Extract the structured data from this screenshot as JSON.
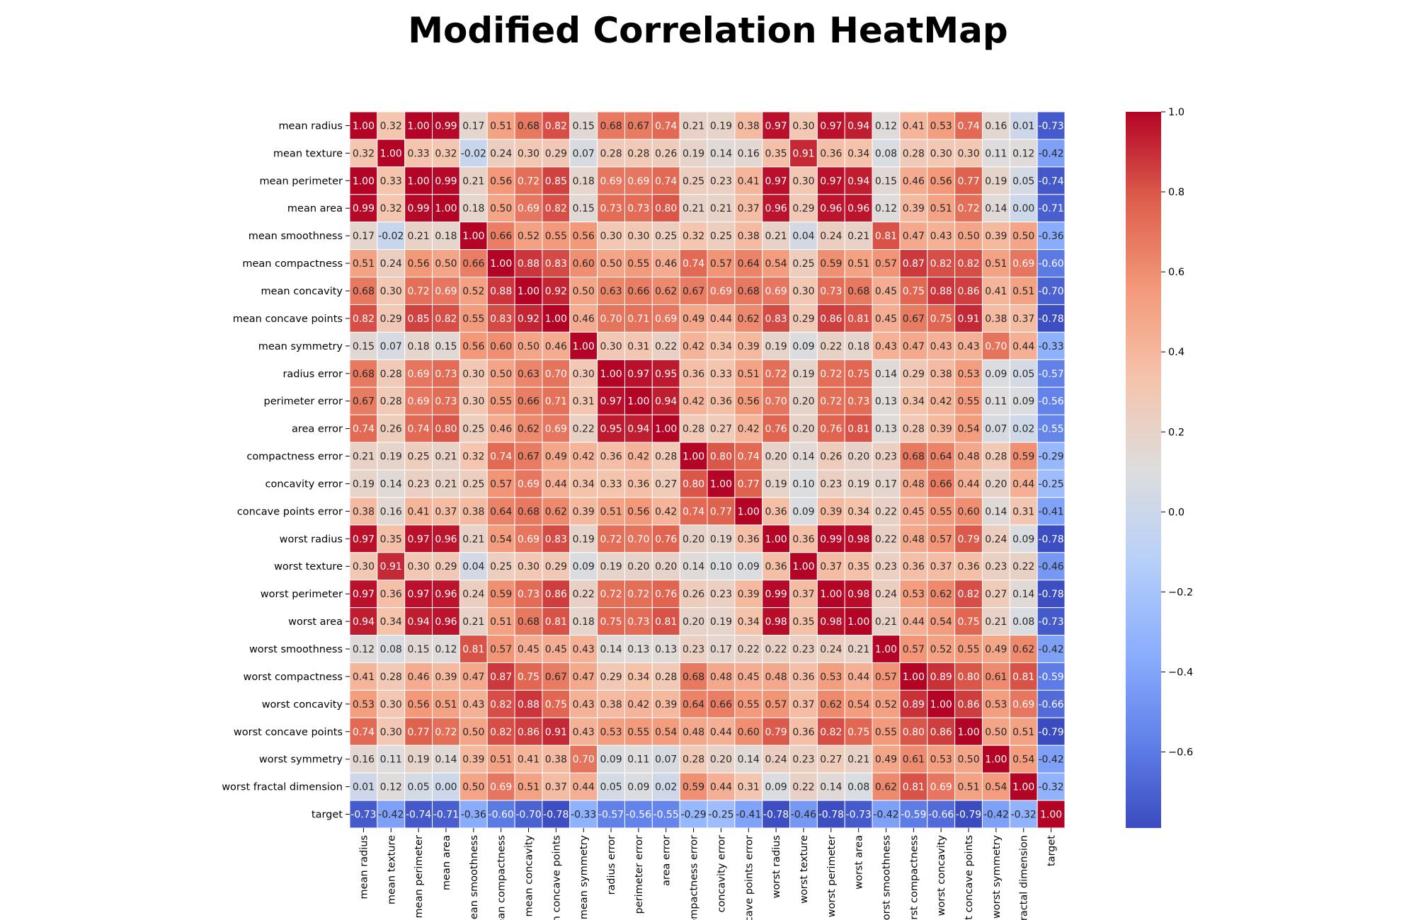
{
  "chart_data": {
    "type": "heatmap",
    "title": "Modified Correlation HeatMap",
    "colormap": "coolwarm",
    "vmin": -0.79,
    "vmax": 1.0,
    "labels": [
      "mean radius",
      "mean texture",
      "mean perimeter",
      "mean area",
      "mean smoothness",
      "mean compactness",
      "mean concavity",
      "mean concave points",
      "mean symmetry",
      "radius error",
      "perimeter error",
      "area error",
      "compactness error",
      "concavity error",
      "concave points error",
      "worst radius",
      "worst texture",
      "worst perimeter",
      "worst area",
      "worst smoothness",
      "worst compactness",
      "worst concavity",
      "worst concave points",
      "worst symmetry",
      "worst fractal dimension",
      "target"
    ],
    "matrix": [
      [
        1.0,
        0.32,
        1.0,
        0.99,
        0.17,
        0.51,
        0.68,
        0.82,
        0.15,
        0.68,
        0.67,
        0.74,
        0.21,
        0.19,
        0.38,
        0.97,
        0.3,
        0.97,
        0.94,
        0.12,
        0.41,
        0.53,
        0.74,
        0.16,
        0.01,
        -0.73
      ],
      [
        0.32,
        1.0,
        0.33,
        0.32,
        -0.02,
        0.24,
        0.3,
        0.29,
        0.07,
        0.28,
        0.28,
        0.26,
        0.19,
        0.14,
        0.16,
        0.35,
        0.91,
        0.36,
        0.34,
        0.08,
        0.28,
        0.3,
        0.3,
        0.11,
        0.12,
        -0.42
      ],
      [
        1.0,
        0.33,
        1.0,
        0.99,
        0.21,
        0.56,
        0.72,
        0.85,
        0.18,
        0.69,
        0.69,
        0.74,
        0.25,
        0.23,
        0.41,
        0.97,
        0.3,
        0.97,
        0.94,
        0.15,
        0.46,
        0.56,
        0.77,
        0.19,
        0.05,
        -0.74
      ],
      [
        0.99,
        0.32,
        0.99,
        1.0,
        0.18,
        0.5,
        0.69,
        0.82,
        0.15,
        0.73,
        0.73,
        0.8,
        0.21,
        0.21,
        0.37,
        0.96,
        0.29,
        0.96,
        0.96,
        0.12,
        0.39,
        0.51,
        0.72,
        0.14,
        0.0,
        -0.71
      ],
      [
        0.17,
        -0.02,
        0.21,
        0.18,
        1.0,
        0.66,
        0.52,
        0.55,
        0.56,
        0.3,
        0.3,
        0.25,
        0.32,
        0.25,
        0.38,
        0.21,
        0.04,
        0.24,
        0.21,
        0.81,
        0.47,
        0.43,
        0.5,
        0.39,
        0.5,
        -0.36
      ],
      [
        0.51,
        0.24,
        0.56,
        0.5,
        0.66,
        1.0,
        0.88,
        0.83,
        0.6,
        0.5,
        0.55,
        0.46,
        0.74,
        0.57,
        0.64,
        0.54,
        0.25,
        0.59,
        0.51,
        0.57,
        0.87,
        0.82,
        0.82,
        0.51,
        0.69,
        -0.6
      ],
      [
        0.68,
        0.3,
        0.72,
        0.69,
        0.52,
        0.88,
        1.0,
        0.92,
        0.5,
        0.63,
        0.66,
        0.62,
        0.67,
        0.69,
        0.68,
        0.69,
        0.3,
        0.73,
        0.68,
        0.45,
        0.75,
        0.88,
        0.86,
        0.41,
        0.51,
        -0.7
      ],
      [
        0.82,
        0.29,
        0.85,
        0.82,
        0.55,
        0.83,
        0.92,
        1.0,
        0.46,
        0.7,
        0.71,
        0.69,
        0.49,
        0.44,
        0.62,
        0.83,
        0.29,
        0.86,
        0.81,
        0.45,
        0.67,
        0.75,
        0.91,
        0.38,
        0.37,
        -0.78
      ],
      [
        0.15,
        0.07,
        0.18,
        0.15,
        0.56,
        0.6,
        0.5,
        0.46,
        1.0,
        0.3,
        0.31,
        0.22,
        0.42,
        0.34,
        0.39,
        0.19,
        0.09,
        0.22,
        0.18,
        0.43,
        0.47,
        0.43,
        0.43,
        0.7,
        0.44,
        -0.33
      ],
      [
        0.68,
        0.28,
        0.69,
        0.73,
        0.3,
        0.5,
        0.63,
        0.7,
        0.3,
        1.0,
        0.97,
        0.95,
        0.36,
        0.33,
        0.51,
        0.72,
        0.19,
        0.72,
        0.75,
        0.14,
        0.29,
        0.38,
        0.53,
        0.09,
        0.05,
        -0.57
      ],
      [
        0.67,
        0.28,
        0.69,
        0.73,
        0.3,
        0.55,
        0.66,
        0.71,
        0.31,
        0.97,
        1.0,
        0.94,
        0.42,
        0.36,
        0.56,
        0.7,
        0.2,
        0.72,
        0.73,
        0.13,
        0.34,
        0.42,
        0.55,
        0.11,
        0.09,
        -0.56
      ],
      [
        0.74,
        0.26,
        0.74,
        0.8,
        0.25,
        0.46,
        0.62,
        0.69,
        0.22,
        0.95,
        0.94,
        1.0,
        0.28,
        0.27,
        0.42,
        0.76,
        0.2,
        0.76,
        0.81,
        0.13,
        0.28,
        0.39,
        0.54,
        0.07,
        0.02,
        -0.55
      ],
      [
        0.21,
        0.19,
        0.25,
        0.21,
        0.32,
        0.74,
        0.67,
        0.49,
        0.42,
        0.36,
        0.42,
        0.28,
        1.0,
        0.8,
        0.74,
        0.2,
        0.14,
        0.26,
        0.2,
        0.23,
        0.68,
        0.64,
        0.48,
        0.28,
        0.59,
        -0.29
      ],
      [
        0.19,
        0.14,
        0.23,
        0.21,
        0.25,
        0.57,
        0.69,
        0.44,
        0.34,
        0.33,
        0.36,
        0.27,
        0.8,
        1.0,
        0.77,
        0.19,
        0.1,
        0.23,
        0.19,
        0.17,
        0.48,
        0.66,
        0.44,
        0.2,
        0.44,
        -0.25
      ],
      [
        0.38,
        0.16,
        0.41,
        0.37,
        0.38,
        0.64,
        0.68,
        0.62,
        0.39,
        0.51,
        0.56,
        0.42,
        0.74,
        0.77,
        1.0,
        0.36,
        0.09,
        0.39,
        0.34,
        0.22,
        0.45,
        0.55,
        0.6,
        0.14,
        0.31,
        -0.41
      ],
      [
        0.97,
        0.35,
        0.97,
        0.96,
        0.21,
        0.54,
        0.69,
        0.83,
        0.19,
        0.72,
        0.7,
        0.76,
        0.2,
        0.19,
        0.36,
        1.0,
        0.36,
        0.99,
        0.98,
        0.22,
        0.48,
        0.57,
        0.79,
        0.24,
        0.09,
        -0.78
      ],
      [
        0.3,
        0.91,
        0.3,
        0.29,
        0.04,
        0.25,
        0.3,
        0.29,
        0.09,
        0.19,
        0.2,
        0.2,
        0.14,
        0.1,
        0.09,
        0.36,
        1.0,
        0.37,
        0.35,
        0.23,
        0.36,
        0.37,
        0.36,
        0.23,
        0.22,
        -0.46
      ],
      [
        0.97,
        0.36,
        0.97,
        0.96,
        0.24,
        0.59,
        0.73,
        0.86,
        0.22,
        0.72,
        0.72,
        0.76,
        0.26,
        0.23,
        0.39,
        0.99,
        0.37,
        1.0,
        0.98,
        0.24,
        0.53,
        0.62,
        0.82,
        0.27,
        0.14,
        -0.78
      ],
      [
        0.94,
        0.34,
        0.94,
        0.96,
        0.21,
        0.51,
        0.68,
        0.81,
        0.18,
        0.75,
        0.73,
        0.81,
        0.2,
        0.19,
        0.34,
        0.98,
        0.35,
        0.98,
        1.0,
        0.21,
        0.44,
        0.54,
        0.75,
        0.21,
        0.08,
        -0.73
      ],
      [
        0.12,
        0.08,
        0.15,
        0.12,
        0.81,
        0.57,
        0.45,
        0.45,
        0.43,
        0.14,
        0.13,
        0.13,
        0.23,
        0.17,
        0.22,
        0.22,
        0.23,
        0.24,
        0.21,
        1.0,
        0.57,
        0.52,
        0.55,
        0.49,
        0.62,
        -0.42
      ],
      [
        0.41,
        0.28,
        0.46,
        0.39,
        0.47,
        0.87,
        0.75,
        0.67,
        0.47,
        0.29,
        0.34,
        0.28,
        0.68,
        0.48,
        0.45,
        0.48,
        0.36,
        0.53,
        0.44,
        0.57,
        1.0,
        0.89,
        0.8,
        0.61,
        0.81,
        -0.59
      ],
      [
        0.53,
        0.3,
        0.56,
        0.51,
        0.43,
        0.82,
        0.88,
        0.75,
        0.43,
        0.38,
        0.42,
        0.39,
        0.64,
        0.66,
        0.55,
        0.57,
        0.37,
        0.62,
        0.54,
        0.52,
        0.89,
        1.0,
        0.86,
        0.53,
        0.69,
        -0.66
      ],
      [
        0.74,
        0.3,
        0.77,
        0.72,
        0.5,
        0.82,
        0.86,
        0.91,
        0.43,
        0.53,
        0.55,
        0.54,
        0.48,
        0.44,
        0.6,
        0.79,
        0.36,
        0.82,
        0.75,
        0.55,
        0.8,
        0.86,
        1.0,
        0.5,
        0.51,
        -0.79
      ],
      [
        0.16,
        0.11,
        0.19,
        0.14,
        0.39,
        0.51,
        0.41,
        0.38,
        0.7,
        0.09,
        0.11,
        0.07,
        0.28,
        0.2,
        0.14,
        0.24,
        0.23,
        0.27,
        0.21,
        0.49,
        0.61,
        0.53,
        0.5,
        1.0,
        0.54,
        -0.42
      ],
      [
        0.01,
        0.12,
        0.05,
        0.0,
        0.5,
        0.69,
        0.51,
        0.37,
        0.44,
        0.05,
        0.09,
        0.02,
        0.59,
        0.44,
        0.31,
        0.09,
        0.22,
        0.14,
        0.08,
        0.62,
        0.81,
        0.69,
        0.51,
        0.54,
        1.0,
        -0.32
      ],
      [
        -0.73,
        -0.42,
        -0.74,
        -0.71,
        -0.36,
        -0.6,
        -0.7,
        -0.78,
        -0.33,
        -0.57,
        -0.56,
        -0.55,
        -0.29,
        -0.25,
        -0.41,
        -0.78,
        -0.46,
        -0.78,
        -0.73,
        -0.42,
        -0.59,
        -0.66,
        -0.79,
        -0.42,
        -0.32,
        1.0
      ]
    ],
    "colorbar_ticks": [
      "1.0",
      "0.8",
      "0.6",
      "0.4",
      "0.2",
      "0.0",
      "−0.2",
      "−0.4",
      "−0.6"
    ]
  }
}
